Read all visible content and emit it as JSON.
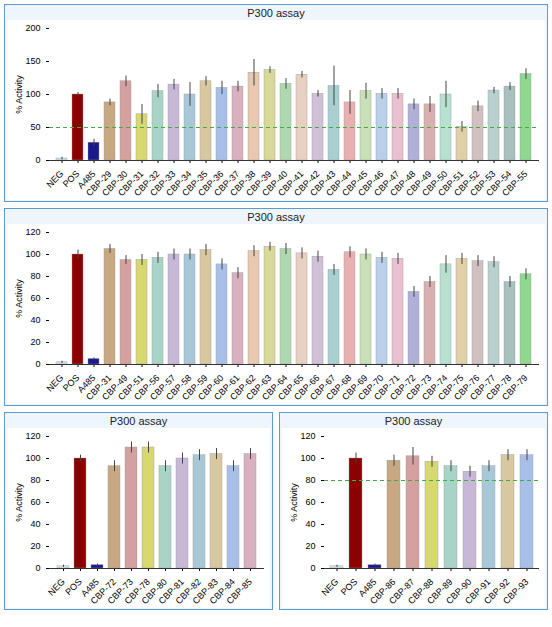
{
  "chart_data": [
    {
      "type": "bar",
      "title": "P300 assay",
      "ylabel": "% Activity",
      "categories": [
        "NEG",
        "POS",
        "A485",
        "CBP-29",
        "CBP-30",
        "CBP-31",
        "CBP-32",
        "CBP-33",
        "CBP-34",
        "CBP-35",
        "CBP-36",
        "CBP-37",
        "CBP-38",
        "CBP-39",
        "CBP-40",
        "CBP-41",
        "CBP-42",
        "CBP-43",
        "CBP-44",
        "CBP-45",
        "CBP-46",
        "CBP-47",
        "CBP-48",
        "CBP-49",
        "CBP-50",
        "CBP-51",
        "CBP-52",
        "CBP-53",
        "CBP-54",
        "CBP-55"
      ],
      "values": [
        3,
        100,
        27,
        88,
        120,
        70,
        105,
        115,
        100,
        120,
        110,
        112,
        133,
        137,
        116,
        130,
        101,
        113,
        88,
        105,
        101,
        101,
        85,
        85,
        100,
        51,
        82,
        106,
        112,
        131
      ],
      "errors": [
        2,
        3,
        5,
        5,
        8,
        15,
        10,
        8,
        18,
        7,
        10,
        8,
        20,
        5,
        8,
        5,
        5,
        30,
        18,
        12,
        8,
        8,
        8,
        12,
        20,
        8,
        8,
        5,
        6,
        8
      ],
      "colors": [
        "#cce0f0",
        "#8b0000",
        "#1a1a8c",
        "#c8a882",
        "#d4a0a0",
        "#d8d870",
        "#a8d4c8",
        "#c8b8d8",
        "#a8c8d8",
        "#d8c8a0",
        "#a8c0e8",
        "#d8b0c0",
        "#e8c8b0",
        "#d8d898",
        "#b0d8b0",
        "#e8d0c0",
        "#d0c0d8",
        "#a8d0d0",
        "#e8b0b0",
        "#c8e0b8",
        "#b8d0e8",
        "#e8c0d0",
        "#b0b0d8",
        "#d8b0b0",
        "#b8e0d0",
        "#e0d0a8",
        "#d0c0c0",
        "#b8d0d0",
        "#a8c0c0",
        "#90d890"
      ],
      "ylim": [
        0,
        200
      ],
      "yticks": [
        0,
        50,
        100,
        150,
        200
      ],
      "grid": false,
      "reference_line": {
        "value": 50,
        "color": "#44aa44",
        "line_style": "dashed"
      }
    },
    {
      "type": "bar",
      "title": "P300 assay",
      "ylabel": "% Activity",
      "categories": [
        "NEG",
        "POS",
        "A485",
        "CBP-31",
        "CBP-49",
        "CBP-51",
        "CBP-56",
        "CBP-57",
        "CBP-58",
        "CBP-59",
        "CBP-60",
        "CBP-61",
        "CBP-62",
        "CBP-63",
        "CBP-64",
        "CBP-65",
        "CBP-66",
        "CBP-67",
        "CBP-68",
        "CBP-69",
        "CBP-70",
        "CBP-71",
        "CBP-72",
        "CBP-73",
        "CBP-74",
        "CBP-75",
        "CBP-76",
        "CBP-77",
        "CBP-78",
        "CBP-79"
      ],
      "values": [
        2,
        100,
        5,
        105,
        95,
        95,
        97,
        100,
        100,
        104,
        91,
        83,
        103,
        107,
        105,
        101,
        98,
        86,
        102,
        100,
        97,
        96,
        66,
        75,
        91,
        96,
        94,
        93,
        75,
        82
      ],
      "errors": [
        1,
        4,
        1,
        4,
        4,
        5,
        5,
        5,
        5,
        5,
        5,
        5,
        5,
        4,
        5,
        5,
        5,
        5,
        5,
        5,
        5,
        5,
        5,
        5,
        8,
        5,
        5,
        5,
        5,
        5
      ],
      "colors": [
        "#cce0f0",
        "#8b0000",
        "#1a1a8c",
        "#c8a882",
        "#d4a0a0",
        "#d8d870",
        "#a8d4c8",
        "#c8b8d8",
        "#a8c8d8",
        "#d8c8a0",
        "#a8c0e8",
        "#d8b0c0",
        "#e8c8b0",
        "#d8d898",
        "#b0d8b0",
        "#e8d0c0",
        "#d0c0d8",
        "#a8d0d0",
        "#e8b0b0",
        "#c8e0b8",
        "#b8d0e8",
        "#e8c0d0",
        "#b0b0d8",
        "#d8b0b0",
        "#b8e0d0",
        "#e0d0a8",
        "#d0c0c0",
        "#b8d0d0",
        "#a8c0c0",
        "#90d890"
      ],
      "ylim": [
        0,
        120
      ],
      "yticks": [
        0,
        20,
        40,
        60,
        80,
        100,
        120
      ],
      "grid": false
    },
    {
      "type": "bar",
      "title": "P300 assay",
      "ylabel": "% Activity",
      "categories": [
        "NEG",
        "POS",
        "A485",
        "CBP-72",
        "CBP-73",
        "CBP-78",
        "CBP-80",
        "CBP-81",
        "CBP-82",
        "CBP-83",
        "CBP-84",
        "CBP-85"
      ],
      "values": [
        2,
        100,
        3,
        93,
        110,
        110,
        93,
        100,
        103,
        104,
        93,
        104
      ],
      "errors": [
        1,
        3,
        1,
        5,
        5,
        5,
        5,
        5,
        5,
        5,
        5,
        5
      ],
      "colors": [
        "#cce0f0",
        "#8b0000",
        "#1a1a8c",
        "#c8a882",
        "#d4a0a0",
        "#d8d870",
        "#a8d4c8",
        "#c8b8d8",
        "#a8c8d8",
        "#d8c8a0",
        "#a8c0e8",
        "#d8b0c0"
      ],
      "ylim": [
        0,
        120
      ],
      "yticks": [
        0,
        20,
        40,
        60,
        80,
        100,
        120
      ],
      "grid": false
    },
    {
      "type": "bar",
      "title": "P300 assay",
      "ylabel": "% Activity",
      "categories": [
        "NEG",
        "POS",
        "A485",
        "CBP-86",
        "CBP-87",
        "CBP-88",
        "CBP-89",
        "CBP-90",
        "CBP-91",
        "CBP-92",
        "CBP-93"
      ],
      "values": [
        2,
        100,
        3,
        98,
        102,
        97,
        93,
        88,
        93,
        103,
        103
      ],
      "errors": [
        1,
        5,
        1,
        5,
        8,
        5,
        5,
        5,
        5,
        5,
        5
      ],
      "colors": [
        "#cce0f0",
        "#8b0000",
        "#1a1a8c",
        "#c8a882",
        "#d4a0a0",
        "#d8d870",
        "#a8d4c8",
        "#c8b8d8",
        "#a8c8d8",
        "#d8c8a0",
        "#a8c0e8"
      ],
      "ylim": [
        0,
        120
      ],
      "yticks": [
        0,
        20,
        40,
        60,
        80,
        100,
        120
      ],
      "grid": false,
      "reference_line": {
        "value": 80,
        "color": "#44aa44",
        "line_style": "dashed"
      }
    }
  ]
}
